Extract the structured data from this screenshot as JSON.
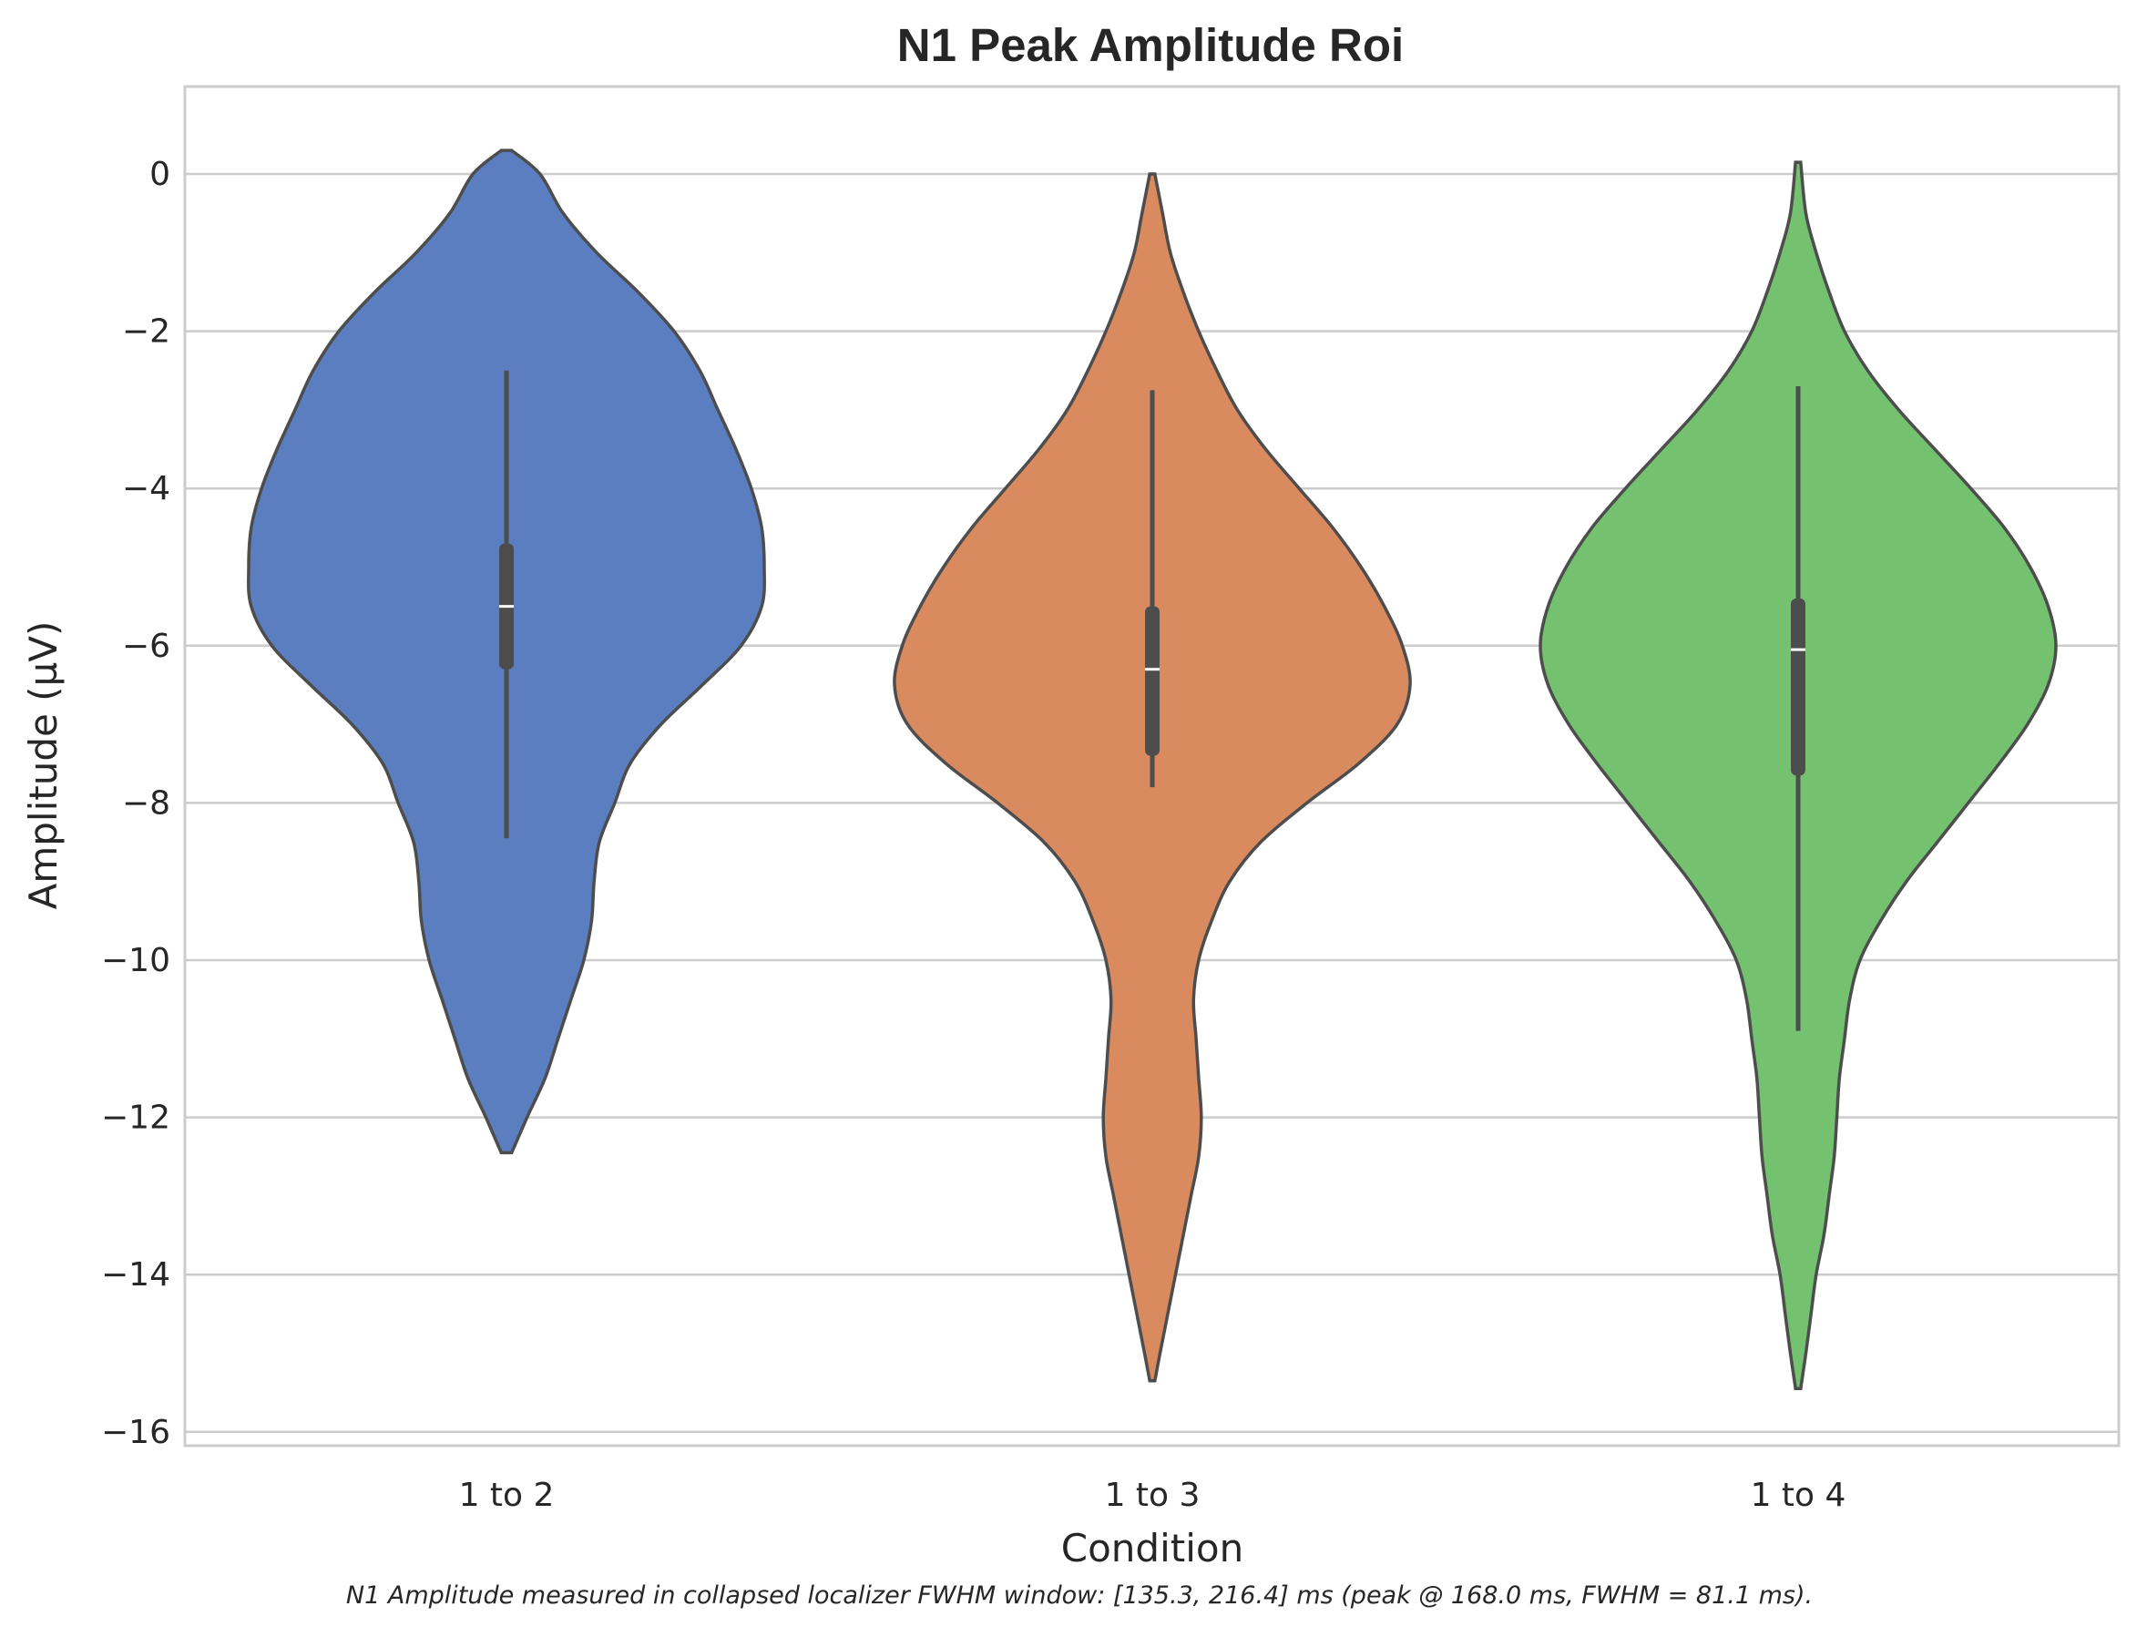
{
  "chart_data": {
    "type": "violin",
    "title": "N1 Peak Amplitude Roi",
    "xlabel": "Condition",
    "ylabel": "Amplitude (µV)",
    "ylim": [
      -16.2,
      1.1
    ],
    "yticks": [
      0,
      -2,
      -4,
      -6,
      -8,
      -10,
      -12,
      -14,
      -16
    ],
    "ytick_labels": [
      "0",
      "−2",
      "−4",
      "−6",
      "−8",
      "−10",
      "−12",
      "−14",
      "−16"
    ],
    "grid": "horizontal",
    "legend": "none",
    "categories": [
      "1 to 2",
      "1 to 3",
      "1 to 4"
    ],
    "caption": "N1 Amplitude measured in collapsed localizer FWHM window: [135.3, 216.4] ms (peak @ 168.0 ms, FWHM = 81.1 ms).",
    "colors": {
      "1 to 2": "#5b7ec0",
      "1 to 3": "#d98a5f",
      "1 to 4": "#74c26f",
      "outline": "#4d4d4d",
      "grid": "#cccccc",
      "median": "#ffffff"
    },
    "violins": [
      {
        "category": "1 to 2",
        "y_max": 0.3,
        "y_min": -12.45,
        "median": -5.5,
        "q1": -6.3,
        "q3": -4.7,
        "whisker_low": -8.45,
        "whisker_high": -2.5,
        "density_profile": [
          [
            0.3,
            0.02
          ],
          [
            0.0,
            0.13
          ],
          [
            -0.5,
            0.22
          ],
          [
            -1.0,
            0.35
          ],
          [
            -1.5,
            0.51
          ],
          [
            -2.0,
            0.65
          ],
          [
            -2.5,
            0.75
          ],
          [
            -3.0,
            0.82
          ],
          [
            -3.5,
            0.89
          ],
          [
            -4.0,
            0.95
          ],
          [
            -4.5,
            0.99
          ],
          [
            -5.0,
            1.0
          ],
          [
            -5.5,
            0.99
          ],
          [
            -6.0,
            0.91
          ],
          [
            -6.5,
            0.76
          ],
          [
            -7.0,
            0.6
          ],
          [
            -7.5,
            0.48
          ],
          [
            -8.0,
            0.42
          ],
          [
            -8.5,
            0.36
          ],
          [
            -9.0,
            0.34
          ],
          [
            -9.5,
            0.33
          ],
          [
            -10.0,
            0.3
          ],
          [
            -10.5,
            0.25
          ],
          [
            -11.0,
            0.2
          ],
          [
            -11.5,
            0.15
          ],
          [
            -12.0,
            0.08
          ],
          [
            -12.45,
            0.02
          ]
        ]
      },
      {
        "category": "1 to 3",
        "y_max": 0.0,
        "y_min": -15.35,
        "median": -6.3,
        "q1": -7.4,
        "q3": -5.5,
        "whisker_low": -7.8,
        "whisker_high": -2.75,
        "density_profile": [
          [
            0.0,
            0.01
          ],
          [
            -0.5,
            0.04
          ],
          [
            -1.0,
            0.07
          ],
          [
            -1.5,
            0.12
          ],
          [
            -2.0,
            0.18
          ],
          [
            -2.5,
            0.25
          ],
          [
            -3.0,
            0.33
          ],
          [
            -3.5,
            0.44
          ],
          [
            -4.0,
            0.57
          ],
          [
            -4.5,
            0.7
          ],
          [
            -5.0,
            0.81
          ],
          [
            -5.5,
            0.9
          ],
          [
            -6.0,
            0.97
          ],
          [
            -6.5,
            1.0
          ],
          [
            -7.0,
            0.95
          ],
          [
            -7.5,
            0.8
          ],
          [
            -8.0,
            0.6
          ],
          [
            -8.5,
            0.42
          ],
          [
            -9.0,
            0.3
          ],
          [
            -9.5,
            0.23
          ],
          [
            -10.0,
            0.18
          ],
          [
            -10.5,
            0.16
          ],
          [
            -11.0,
            0.17
          ],
          [
            -11.5,
            0.18
          ],
          [
            -12.0,
            0.19
          ],
          [
            -12.5,
            0.18
          ],
          [
            -13.0,
            0.15
          ],
          [
            -13.5,
            0.12
          ],
          [
            -14.0,
            0.09
          ],
          [
            -14.5,
            0.06
          ],
          [
            -15.0,
            0.03
          ],
          [
            -15.35,
            0.01
          ]
        ]
      },
      {
        "category": "1 to 4",
        "y_max": 0.15,
        "y_min": -15.45,
        "median": -6.05,
        "q1": -7.65,
        "q3": -5.4,
        "whisker_low": -10.9,
        "whisker_high": -2.7,
        "density_profile": [
          [
            0.15,
            0.01
          ],
          [
            -0.5,
            0.03
          ],
          [
            -1.0,
            0.07
          ],
          [
            -1.5,
            0.12
          ],
          [
            -2.0,
            0.18
          ],
          [
            -2.5,
            0.27
          ],
          [
            -3.0,
            0.39
          ],
          [
            -3.5,
            0.53
          ],
          [
            -4.0,
            0.67
          ],
          [
            -4.5,
            0.8
          ],
          [
            -5.0,
            0.9
          ],
          [
            -5.5,
            0.97
          ],
          [
            -6.0,
            1.0
          ],
          [
            -6.5,
            0.97
          ],
          [
            -7.0,
            0.89
          ],
          [
            -7.5,
            0.78
          ],
          [
            -8.0,
            0.66
          ],
          [
            -8.5,
            0.54
          ],
          [
            -9.0,
            0.42
          ],
          [
            -9.5,
            0.32
          ],
          [
            -10.0,
            0.24
          ],
          [
            -10.5,
            0.2
          ],
          [
            -11.0,
            0.18
          ],
          [
            -11.5,
            0.16
          ],
          [
            -12.0,
            0.15
          ],
          [
            -12.5,
            0.14
          ],
          [
            -13.0,
            0.12
          ],
          [
            -13.5,
            0.1
          ],
          [
            -14.0,
            0.07
          ],
          [
            -14.5,
            0.05
          ],
          [
            -15.0,
            0.03
          ],
          [
            -15.45,
            0.01
          ]
        ]
      }
    ]
  }
}
